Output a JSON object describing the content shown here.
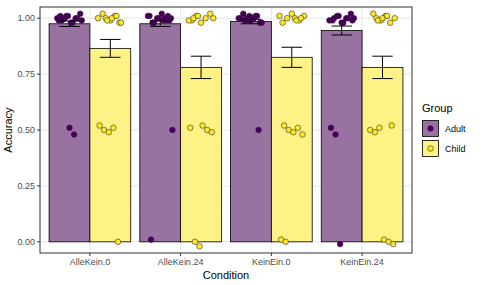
{
  "chart_data": {
    "type": "bar",
    "x_label": "Condition",
    "y_label": "Accuracy",
    "categories": [
      "AlleKein.0",
      "AlleKein.24",
      "KeinEin.0",
      "KeinEin.24"
    ],
    "ylim": [
      -0.05,
      1.05
    ],
    "yticks": [
      {
        "value": 0,
        "label": "0.00"
      },
      {
        "value": 0.25,
        "label": "0.25"
      },
      {
        "value": 0.5,
        "label": "0.50"
      },
      {
        "value": 0.75,
        "label": "0.75"
      },
      {
        "value": 1,
        "label": "1.00"
      }
    ],
    "grid": true,
    "legend": "right",
    "legend_title": "Group",
    "series": [
      {
        "name": "Adult",
        "color": "#440154",
        "values": [
          0.975,
          0.975,
          0.985,
          0.945
        ],
        "errors": [
          0.012,
          0.012,
          0.01,
          0.02
        ],
        "points": [
          [
            1.0,
            0.99,
            1.01,
            0.98,
            1.0,
            1.02,
            0.99,
            1.0,
            1.01,
            0.98,
            1.0,
            0.99,
            1.01,
            1.0,
            0.51,
            0.48
          ],
          [
            1.0,
            0.99,
            1.01,
            0.98,
            1.0,
            1.02,
            0.99,
            1.0,
            1.01,
            0.98,
            1.0,
            0.99,
            1.01,
            0.5,
            0.01
          ],
          [
            1.0,
            0.99,
            1.01,
            0.98,
            1.0,
            1.02,
            0.99,
            1.0,
            1.01,
            0.98,
            1.0,
            0.99,
            1.01,
            1.0,
            0.5
          ],
          [
            1.0,
            0.99,
            1.01,
            0.98,
            1.0,
            1.02,
            0.99,
            1.0,
            1.01,
            0.98,
            1.0,
            0.99,
            0.51,
            0.48,
            -0.01
          ]
        ]
      },
      {
        "name": "Child",
        "color": "#FDE725",
        "values": [
          0.865,
          0.78,
          0.825,
          0.78
        ],
        "errors": [
          0.04,
          0.05,
          0.045,
          0.05
        ],
        "points": [
          [
            1.0,
            0.99,
            1.01,
            0.98,
            1.0,
            1.02,
            0.99,
            1.0,
            1.01,
            0.98,
            0.52,
            0.5,
            0.49,
            0.51,
            0.0
          ],
          [
            1.0,
            0.99,
            1.01,
            0.98,
            1.0,
            1.02,
            0.99,
            1.0,
            1.01,
            0.52,
            0.5,
            0.49,
            0.51,
            0.0,
            -0.02
          ],
          [
            1.0,
            0.99,
            1.01,
            0.98,
            1.0,
            1.02,
            0.99,
            1.0,
            1.01,
            0.52,
            0.5,
            0.49,
            0.51,
            0.48,
            0.01,
            0.0
          ],
          [
            1.0,
            0.99,
            1.01,
            0.98,
            1.0,
            1.02,
            0.99,
            1.0,
            1.01,
            0.52,
            0.5,
            0.49,
            0.51,
            0.01,
            0.0,
            -0.01
          ]
        ]
      }
    ]
  }
}
